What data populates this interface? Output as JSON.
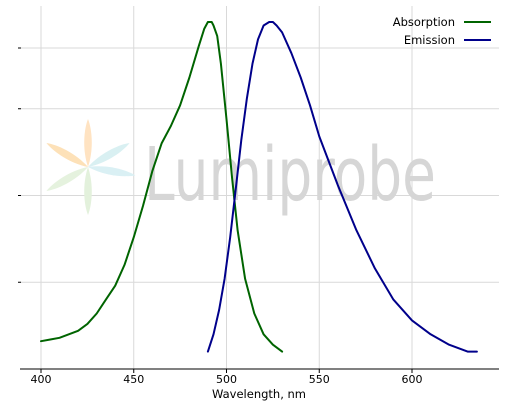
{
  "chart_data": {
    "type": "line",
    "title": "",
    "xlabel": "Wavelength, nm",
    "ylabel": "",
    "xlim": [
      388,
      648
    ],
    "ylim": [
      0,
      1.08
    ],
    "x_ticks": [
      400,
      450,
      500,
      550,
      600
    ],
    "x_tick_labels": [
      "400",
      "450",
      "500",
      "550",
      "600"
    ],
    "y_grid_values": [
      0.25,
      0.5,
      0.75,
      1.0
    ],
    "grid": true,
    "legend_position": "top-right",
    "series": [
      {
        "name": "Absorption",
        "color": "#006400",
        "x": [
          400,
          405,
          410,
          415,
          420,
          425,
          430,
          435,
          440,
          445,
          450,
          455,
          460,
          465,
          470,
          475,
          480,
          485,
          488,
          490,
          492,
          493,
          495,
          497,
          500,
          503,
          506,
          510,
          515,
          520,
          525,
          530
        ],
        "y": [
          0.08,
          0.085,
          0.09,
          0.1,
          0.11,
          0.13,
          0.16,
          0.2,
          0.24,
          0.3,
          0.38,
          0.47,
          0.57,
          0.65,
          0.7,
          0.76,
          0.84,
          0.93,
          0.98,
          1.0,
          1.0,
          0.99,
          0.96,
          0.88,
          0.72,
          0.55,
          0.4,
          0.26,
          0.16,
          0.1,
          0.07,
          0.05
        ]
      },
      {
        "name": "Emission",
        "color": "#00008b",
        "x": [
          490,
          493,
          496,
          499,
          502,
          505,
          508,
          511,
          514,
          517,
          520,
          523,
          525,
          527,
          530,
          535,
          540,
          545,
          550,
          560,
          570,
          580,
          590,
          600,
          610,
          620,
          630,
          635
        ],
        "y": [
          0.05,
          0.1,
          0.17,
          0.26,
          0.38,
          0.52,
          0.66,
          0.78,
          0.88,
          0.95,
          0.99,
          1.0,
          1.0,
          0.99,
          0.97,
          0.91,
          0.84,
          0.76,
          0.67,
          0.53,
          0.4,
          0.29,
          0.2,
          0.14,
          0.1,
          0.07,
          0.05,
          0.05
        ]
      }
    ]
  },
  "watermark": {
    "text": "Lumiprobe"
  }
}
